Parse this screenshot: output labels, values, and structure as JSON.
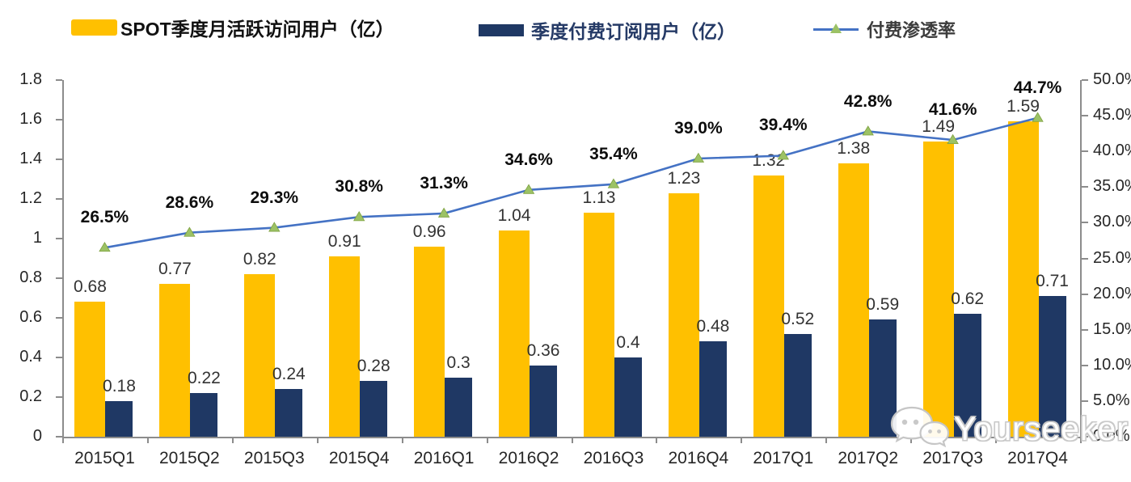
{
  "legend": {
    "items": [
      {
        "label": "SPOT季度月活跃访问用户（亿）",
        "color": "#FFC000",
        "type": "bar"
      },
      {
        "label": "季度付费订阅用户（亿）",
        "color": "#1F3864",
        "type": "bar"
      },
      {
        "label": "付费渗透率",
        "color": "#4472C4",
        "marker_color": "#9CC265",
        "type": "line"
      }
    ]
  },
  "chart_data": {
    "type": "bar",
    "subtype": "grouped-bars-with-line-combo",
    "categories": [
      "2015Q1",
      "2015Q2",
      "2015Q3",
      "2015Q4",
      "2016Q1",
      "2016Q2",
      "2016Q3",
      "2016Q4",
      "2017Q1",
      "2017Q2",
      "2017Q3",
      "2017Q4"
    ],
    "series": [
      {
        "name": "SPOT季度月活跃访问用户（亿）",
        "type": "bar",
        "axis": "left",
        "color": "#FFC000",
        "values": [
          0.68,
          0.77,
          0.82,
          0.91,
          0.96,
          1.04,
          1.13,
          1.23,
          1.32,
          1.38,
          1.49,
          1.59
        ],
        "labels": [
          "0.68",
          "0.77",
          "0.82",
          "0.91",
          "0.96",
          "1.04",
          "1.13",
          "1.23",
          "1.32",
          "1.38",
          "1.49",
          "1.59"
        ]
      },
      {
        "name": "季度付费订阅用户（亿）",
        "type": "bar",
        "axis": "left",
        "color": "#1F3864",
        "values": [
          0.18,
          0.22,
          0.24,
          0.28,
          0.3,
          0.36,
          0.4,
          0.48,
          0.52,
          0.59,
          0.62,
          0.71
        ],
        "labels": [
          "0.18",
          "0.22",
          "0.24",
          "0.28",
          "0.3",
          "0.36",
          "0.4",
          "0.48",
          "0.52",
          "0.59",
          "0.62",
          "0.71"
        ]
      },
      {
        "name": "付费渗透率",
        "type": "line",
        "axis": "right",
        "color": "#4472C4",
        "marker": "triangle",
        "marker_color": "#9CC265",
        "values_percent": [
          26.5,
          28.6,
          29.3,
          30.8,
          31.3,
          34.6,
          35.4,
          39.0,
          39.4,
          42.8,
          41.6,
          44.7
        ],
        "labels": [
          "26.5%",
          "28.6%",
          "29.3%",
          "30.8%",
          "31.3%",
          "34.6%",
          "35.4%",
          "39.0%",
          "39.4%",
          "42.8%",
          "41.6%",
          "44.7%"
        ]
      }
    ],
    "left_axis": {
      "min": 0,
      "max": 1.8,
      "step": 0.2,
      "ticks": [
        "1.8",
        "1.6",
        "1.4",
        "1.2",
        "1",
        "0.8",
        "0.6",
        "0.4",
        "0.2",
        "0"
      ]
    },
    "right_axis": {
      "min": 0,
      "max": 50,
      "step": 5,
      "ticks": [
        "50.0%",
        "45.0%",
        "40.0%",
        "35.0%",
        "30.0%",
        "25.0%",
        "20.0%",
        "15.0%",
        "10.0%",
        "5.0%",
        "0.0%"
      ]
    },
    "grid": false,
    "legend_position": "top",
    "title": ""
  },
  "watermark": {
    "text": "Yourseeker",
    "icon": "wechat-chat-bubbles-icon"
  }
}
